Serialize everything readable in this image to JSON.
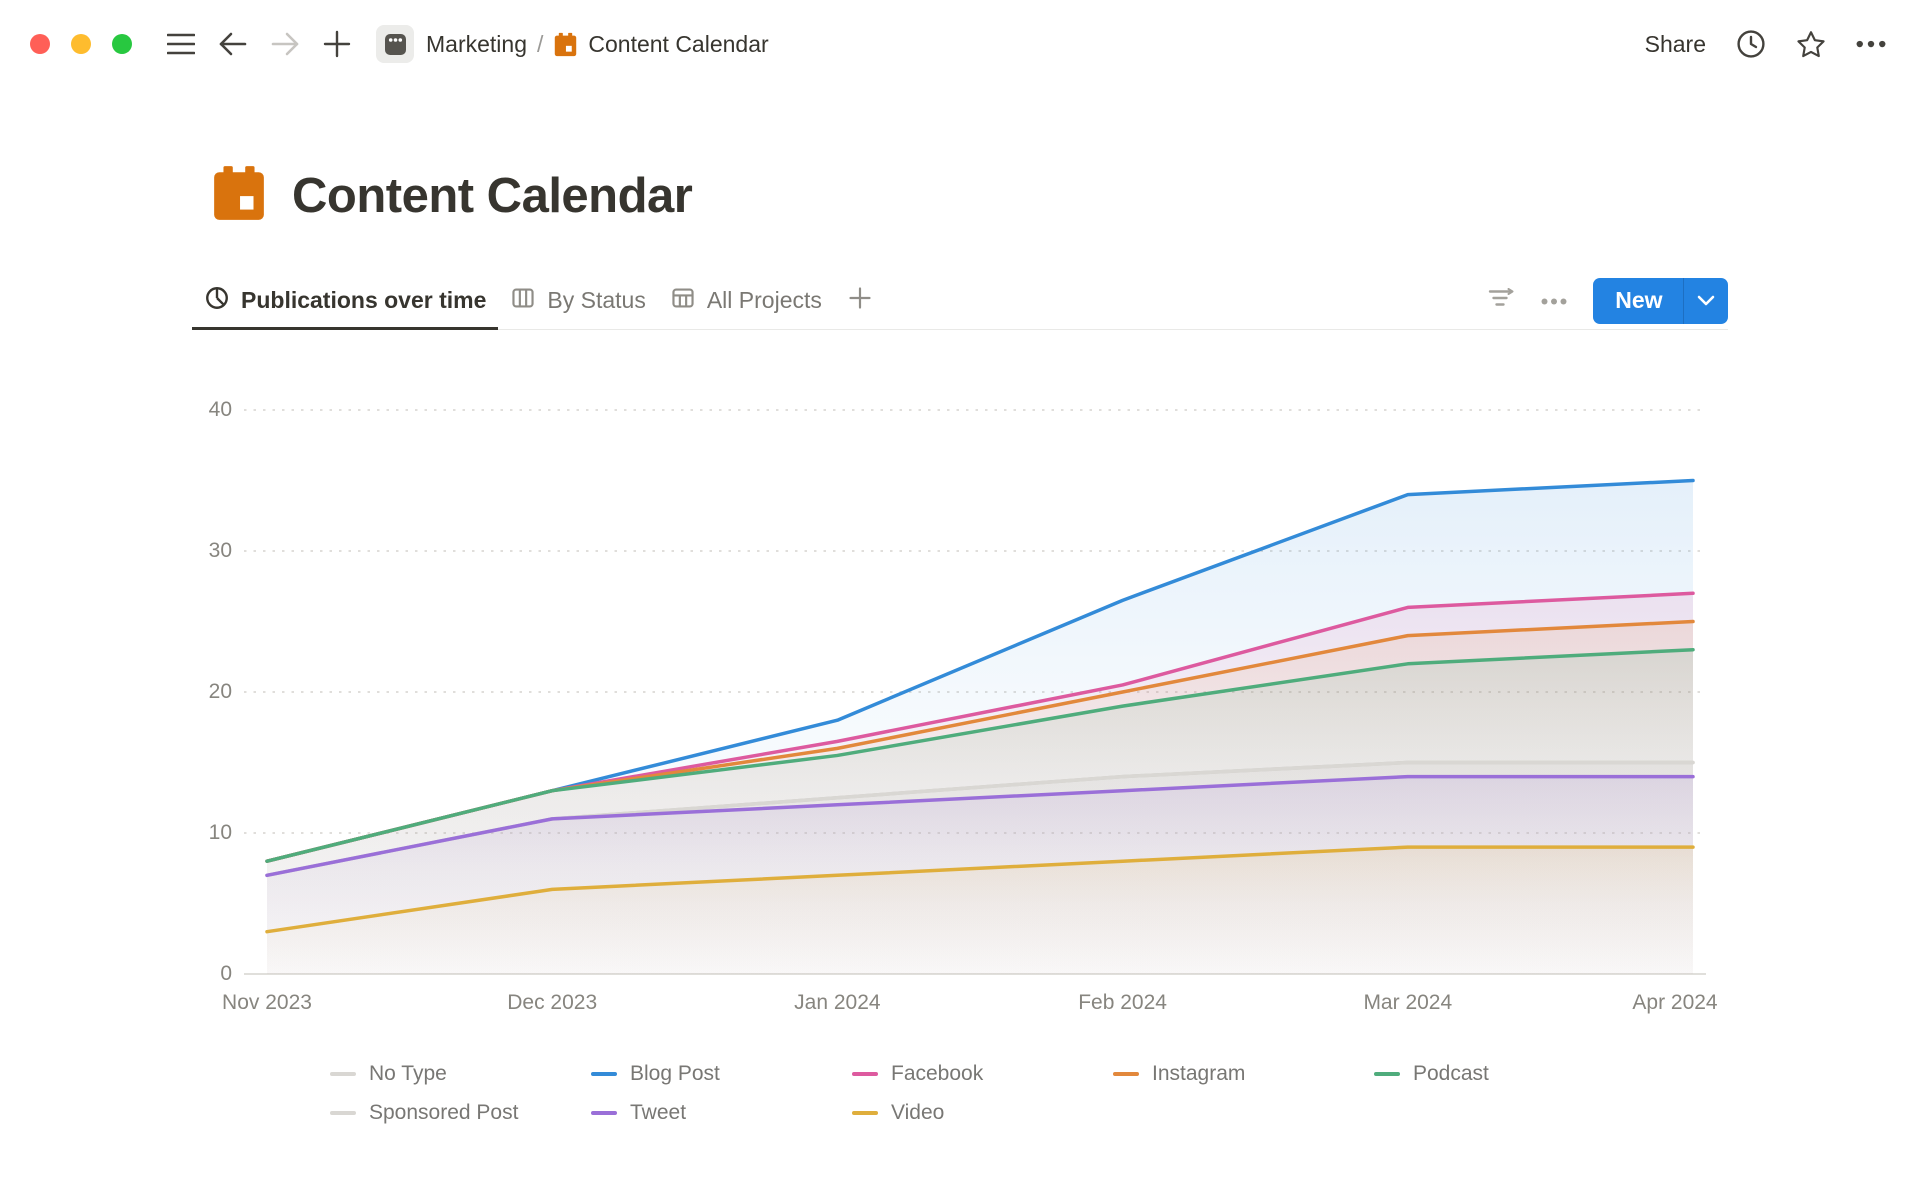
{
  "window": {
    "traffic_lights": {
      "close": "#FF5F57",
      "minimize": "#FEBC2E",
      "zoom": "#28C840"
    }
  },
  "topbar": {
    "breadcrumb": {
      "workspace": "Marketing",
      "separator": "/",
      "page": "Content Calendar"
    },
    "share_label": "Share"
  },
  "icons": {
    "menu": "hamburger-icon",
    "back": "arrow-left-icon",
    "forward": "arrow-right-icon",
    "new_page": "plus-icon",
    "workspace": "teamspace-icon",
    "page": "calendar-icon",
    "history": "clock-icon",
    "favorite": "star-icon",
    "more": "ellipsis-icon",
    "active_view": "pie-chart-icon",
    "board_view": "board-columns-icon",
    "table_view": "table-grid-icon",
    "add_view": "plus-icon",
    "filter": "sort-filter-icon",
    "view_more": "ellipsis-icon",
    "new_dropdown": "chevron-down-icon"
  },
  "page": {
    "title": "Content Calendar",
    "icon_color": "#D9730D"
  },
  "views": {
    "tabs": [
      {
        "label": "Publications over time",
        "active": true
      },
      {
        "label": "By Status",
        "active": false
      },
      {
        "label": "All Projects",
        "active": false
      }
    ],
    "new_button": {
      "label": "New",
      "color": "#2383E2"
    }
  },
  "chart_data": {
    "type": "area",
    "title": "Publications over time",
    "x": [
      "Nov 2023",
      "Dec 2023",
      "Jan 2024",
      "Feb 2024",
      "Mar 2024",
      "Apr 2024"
    ],
    "xlabel": "",
    "ylabel": "",
    "ylim": [
      0,
      40
    ],
    "yticks": [
      0,
      10,
      20,
      30,
      40
    ],
    "grid": "horizontal-dotted",
    "legend_position": "bottom",
    "series": [
      {
        "name": "No Type",
        "color": "#D9D7D3",
        "values": [
          7,
          11,
          12.5,
          14,
          15,
          15
        ]
      },
      {
        "name": "Blog Post",
        "color": "#338BD8",
        "values": [
          8,
          13,
          18,
          26.5,
          34,
          35
        ]
      },
      {
        "name": "Facebook",
        "color": "#DD5A9F",
        "values": [
          8,
          13,
          16.5,
          20.5,
          26,
          27
        ]
      },
      {
        "name": "Instagram",
        "color": "#E2883C",
        "values": [
          8,
          13,
          16,
          20,
          24,
          25
        ]
      },
      {
        "name": "Podcast",
        "color": "#4FAC7C",
        "values": [
          8,
          13,
          15.5,
          19,
          22,
          23
        ]
      },
      {
        "name": "Sponsored Post",
        "color": "#D9D7D3",
        "values": [
          7,
          11,
          12.5,
          14,
          15,
          15
        ]
      },
      {
        "name": "Tweet",
        "color": "#9A6FD8",
        "values": [
          7,
          11,
          12,
          13,
          14,
          14
        ]
      },
      {
        "name": "Video",
        "color": "#DFAE3C",
        "values": [
          3,
          6,
          7,
          8,
          9,
          9
        ]
      }
    ]
  }
}
